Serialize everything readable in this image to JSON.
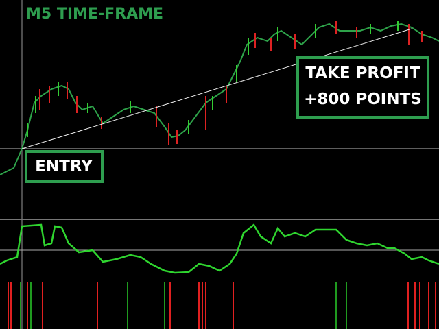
{
  "header": {
    "title": "M5 TIME-FRAME"
  },
  "annotations": {
    "take_profit": [
      "TAKE PROFIT",
      "+800 POINTS"
    ],
    "entry": "ENTRY"
  }
}
